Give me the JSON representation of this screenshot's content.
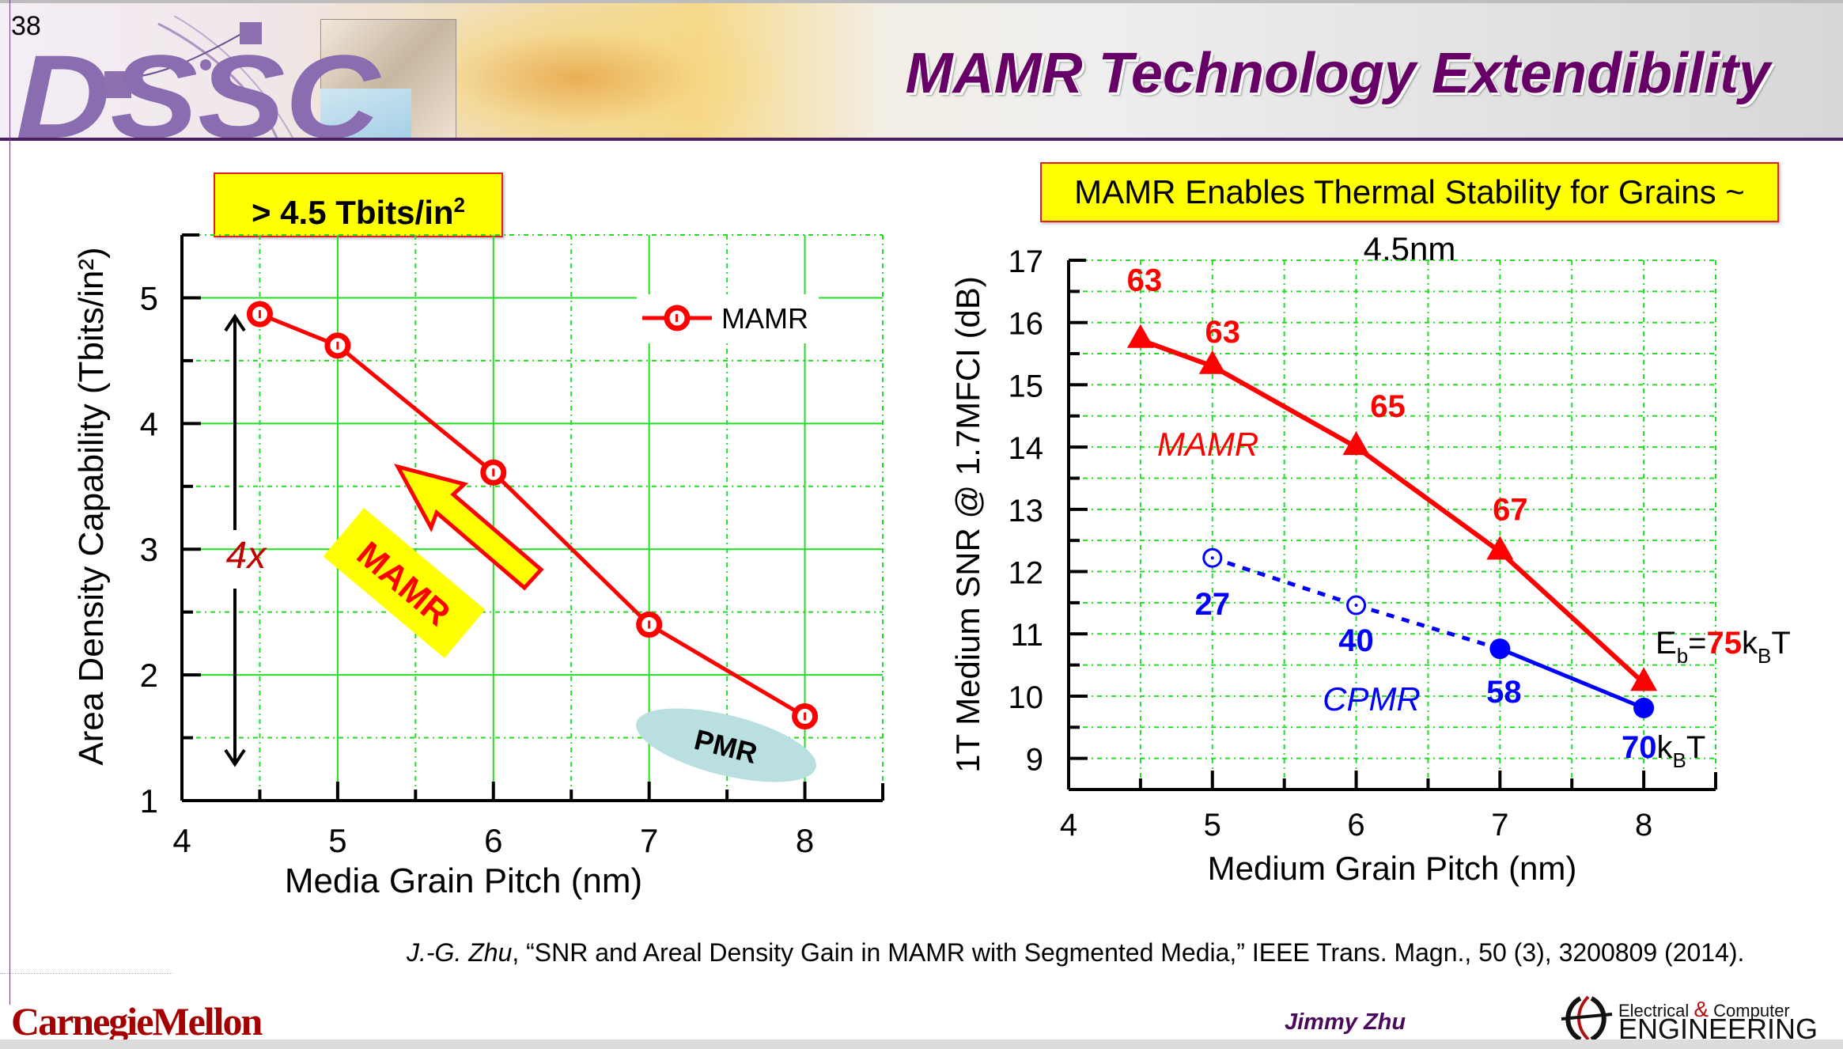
{
  "slide": {
    "page_number": "38",
    "title": "MAMR Technology Extendibility",
    "logo_text": "DSSC",
    "title_color": "#660066"
  },
  "left_panel": {
    "badge_text": "> 4.5 Tbits/in",
    "badge_sup": "2"
  },
  "right_panel": {
    "badge_text": "MAMR Enables Thermal Stability for Grains ~ 4.5nm"
  },
  "chart_data": [
    {
      "type": "line",
      "title": "",
      "xlabel": "Media Grain Pitch (nm)",
      "ylabel": "Area Density Capability (Tbits/in²)",
      "xlim": [
        4,
        8.5
      ],
      "ylim": [
        1,
        5.5
      ],
      "xticks": [
        4,
        5,
        6,
        7,
        8
      ],
      "yticks": [
        1,
        2,
        3,
        4,
        5
      ],
      "grid": true,
      "legend": "top-right",
      "series": [
        {
          "name": "MAMR",
          "color": "#ff0000",
          "marker": "open-circle",
          "x": [
            4.5,
            5,
            6,
            7,
            8
          ],
          "y": [
            4.87,
            4.62,
            3.61,
            2.4,
            1.67
          ]
        }
      ],
      "annotations": {
        "four_x": "4x",
        "mamr_arrow_label": "MAMR",
        "pmr_label": "PMR"
      }
    },
    {
      "type": "line",
      "title": "",
      "xlabel": "Medium Grain Pitch (nm)",
      "ylabel": "1T Medium SNR @ 1.7MFCI  (dB)",
      "xlim": [
        4,
        8.5
      ],
      "ylim": [
        8.5,
        17
      ],
      "xticks": [
        4,
        5,
        6,
        7,
        8
      ],
      "yticks": [
        9,
        10,
        11,
        12,
        13,
        14,
        15,
        16,
        17
      ],
      "grid": true,
      "series": [
        {
          "name": "MAMR",
          "color": "#ff0000",
          "marker": "triangle",
          "x": [
            4.5,
            5,
            6,
            7,
            8
          ],
          "y": [
            15.72,
            15.3,
            14.0,
            12.32,
            10.21
          ],
          "point_labels": [
            "63",
            "63",
            "65",
            "67",
            ""
          ]
        },
        {
          "name": "CPMR",
          "color": "#0000ff",
          "marker": "circle",
          "x": [
            5,
            6,
            7,
            8
          ],
          "y": [
            12.22,
            11.46,
            10.76,
            9.81
          ],
          "open_markers": [
            true,
            true,
            false,
            false
          ],
          "dashed_segments": [
            true,
            true,
            false
          ],
          "point_labels": [
            "27",
            "40",
            "58",
            "70"
          ]
        }
      ],
      "annotations": {
        "mamr_label": "MAMR",
        "cpmr_label": "CPMR",
        "eb_prefix": "E",
        "eb_sub": "b",
        "eb_eq": "=",
        "eb_value": "75",
        "kb_k": "k",
        "kb_sub": "B",
        "kb_T": "T",
        "cpmr_end_value": "70"
      }
    }
  ],
  "footer": {
    "citation_author": "J.-G. Zhu",
    "citation_rest": ", “SNR and Areal Density Gain in MAMR with Segmented Media,” IEEE Trans. Magn., 50 (3), 3200809 (2014).",
    "university": "CarnegieMellon",
    "presenter": "Jimmy Zhu",
    "dept_line1_a": "Electrical ",
    "dept_line1_amp": "&",
    "dept_line1_b": " Computer",
    "dept_line2": "ENGINEERING"
  }
}
